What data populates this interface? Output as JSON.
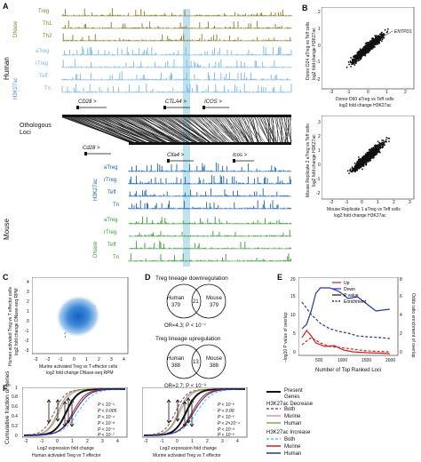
{
  "panel_labels": {
    "a": "A",
    "b": "B",
    "c": "C",
    "d": "D",
    "e": "E",
    "f": "F"
  },
  "panel_a": {
    "species_top": "Human",
    "species_bottom": "Mouse",
    "human_groups": {
      "dnase": "DNase",
      "h3k27ac": "H3K27ac"
    },
    "mouse_groups": {
      "h3k27ac": "H3K27ac",
      "dnase": "DNase"
    },
    "human_dnase_tracks": [
      "Treg",
      "Th1",
      "Th2"
    ],
    "human_h3k27ac_tracks": [
      "aTreg",
      "rTreg",
      "Teff",
      "Tn"
    ],
    "mouse_h3k27ac_tracks": [
      "aTreg",
      "rTreg",
      "Teff",
      "Tn"
    ],
    "mouse_dnase_tracks": [
      "aTreg",
      "rTreg",
      "Teff",
      "Tn"
    ],
    "human_genes": [
      "CD28 >",
      "CTLA4 >",
      "ICOS >"
    ],
    "mouse_genes": [
      "Cd28 >",
      "Ctla4 >",
      "Icos >"
    ],
    "orthologous_label": "Othologous Loci",
    "colors": {
      "dnase_h": "#8a7a2a",
      "h3k_h": "#7fb6e6",
      "h3k_m": "#1d62b0",
      "dnase_m": "#3c9a3c",
      "highlight": "#bfe3ee"
    }
  },
  "panel_b": {
    "top_ylabel_1": "Donor D24 aTreg vs Teff cells",
    "top_ylabel_2": "log2 fold change H3K27ac",
    "top_xlabel_1": "Donor D60 aTreg vs Teff cells",
    "top_xlabel_2": "log2 fold change H3K27ac",
    "annotation": "ENTPD1",
    "top_xticks": [
      "-2",
      "-1",
      "0",
      "1",
      "2"
    ],
    "top_yticks": [
      "-2",
      "-1",
      "0",
      "1",
      "2"
    ],
    "bot_ylabel_1": "Mouse Replicate 2 aTreg vs Teff cells",
    "bot_ylabel_2": "log2 fold change H3K27ac",
    "bot_xlabel_1": "Mouse Replicate 1 aTreg vs Teff cells",
    "bot_xlabel_2": "log2 fold change H3K27ac",
    "bot_xticks": [
      "-2",
      "-1",
      "0",
      "1",
      "2",
      "3"
    ],
    "bot_yticks": [
      "-2",
      "-1",
      "0",
      "1",
      "2",
      "3"
    ]
  },
  "panel_c": {
    "ylabel_1": "Human activated Treg vs T effector cells",
    "ylabel_2": "log2 fold change DNase-seq RPM",
    "xlabel_1": "Murine activated Treg vs T effector cells",
    "xlabel_2": "log2 fold change DNase-seq RPM",
    "xticks": [
      "-3",
      "-2",
      "-1",
      "0",
      "1",
      "2",
      "3",
      "4"
    ],
    "yticks": [
      "-3",
      "-2",
      "-1",
      "0",
      "1",
      "2",
      "3",
      "4"
    ]
  },
  "panel_d": {
    "down_title": "Treg lineage downregulation",
    "down_left": [
      "Human",
      "379"
    ],
    "down_mid": "21",
    "down_right": [
      "Mouse",
      "379"
    ],
    "down_stat": "OR=4.3;  P < 10⁻⁷",
    "up_title": "Treg lineage upregulation",
    "up_left": [
      "Human",
      "388"
    ],
    "up_mid": "13",
    "up_right": [
      "Mouse",
      "388"
    ],
    "up_stat": "OR=2.7;  P < 10⁻³"
  },
  "panel_e": {
    "legend": [
      {
        "label": "Up",
        "color": "#d21e1e",
        "style": "solid"
      },
      {
        "label": "Down",
        "color": "#2236a6",
        "style": "solid"
      },
      {
        "label": "P value",
        "color": "#111111",
        "style": "solid"
      },
      {
        "label": "Enrichment",
        "color": "#111111",
        "style": "dashed"
      }
    ],
    "xlabel": "Number of Top Ranked Loci",
    "ylabel_left": "−log10 P value of overlap",
    "ylabel_right": "Odds ratio enrichment of overlap",
    "xticks": [
      "500",
      "1000",
      "1500",
      "2000"
    ],
    "yticks_left": [
      "0",
      "5",
      "10",
      "15",
      "20"
    ],
    "yticks_right": [
      "0",
      "2",
      "4",
      "6",
      "8"
    ]
  },
  "panel_f": {
    "ylabel": "Cumulative fraction of genes",
    "yticks": [
      "0",
      "0.2",
      "0.4",
      "0.6",
      "0.8",
      "1"
    ],
    "xticks": [
      "-2",
      "-1",
      "0",
      "1",
      "2",
      "3",
      "4"
    ],
    "left_xlabel_1": "Log2 expression fold change",
    "left_xlabel_2": "Human activated Treg vs T effector",
    "right_xlabel_1": "Log2 expression fold change",
    "right_xlabel_2": "Murine activated Treg vs T effector",
    "left_pvals": [
      "P < 10⁻⁴",
      "P < 0.005",
      "P < 10⁻⁴",
      "P < 10⁻⁸",
      "P < 10⁻⁵",
      "P < 10⁻⁷"
    ],
    "right_pvals": [
      "P < 10⁻⁶",
      "P < 0.09",
      "P < 10⁻⁵",
      "P < 2×10⁻⁴",
      "P < 10⁻⁸",
      "P < 10⁻⁵"
    ],
    "legend": {
      "present": [
        "Present",
        "Genes"
      ],
      "decrease_title": "H3K27ac Decrease",
      "decrease": [
        {
          "label": "Both",
          "color": "#b03a96",
          "style": "dashed"
        },
        {
          "label": "Murine",
          "color": "#d98fcf",
          "style": "solid"
        },
        {
          "label": "Human",
          "color": "#7bb23a",
          "style": "solid"
        }
      ],
      "increase_title": "H3K27ac Increase",
      "increase": [
        {
          "label": "Both",
          "color": "#62bfe0",
          "style": "dashed"
        },
        {
          "label": "Murine",
          "color": "#d21e1e",
          "style": "solid"
        },
        {
          "label": "Human",
          "color": "#2236a6",
          "style": "solid"
        }
      ]
    }
  }
}
